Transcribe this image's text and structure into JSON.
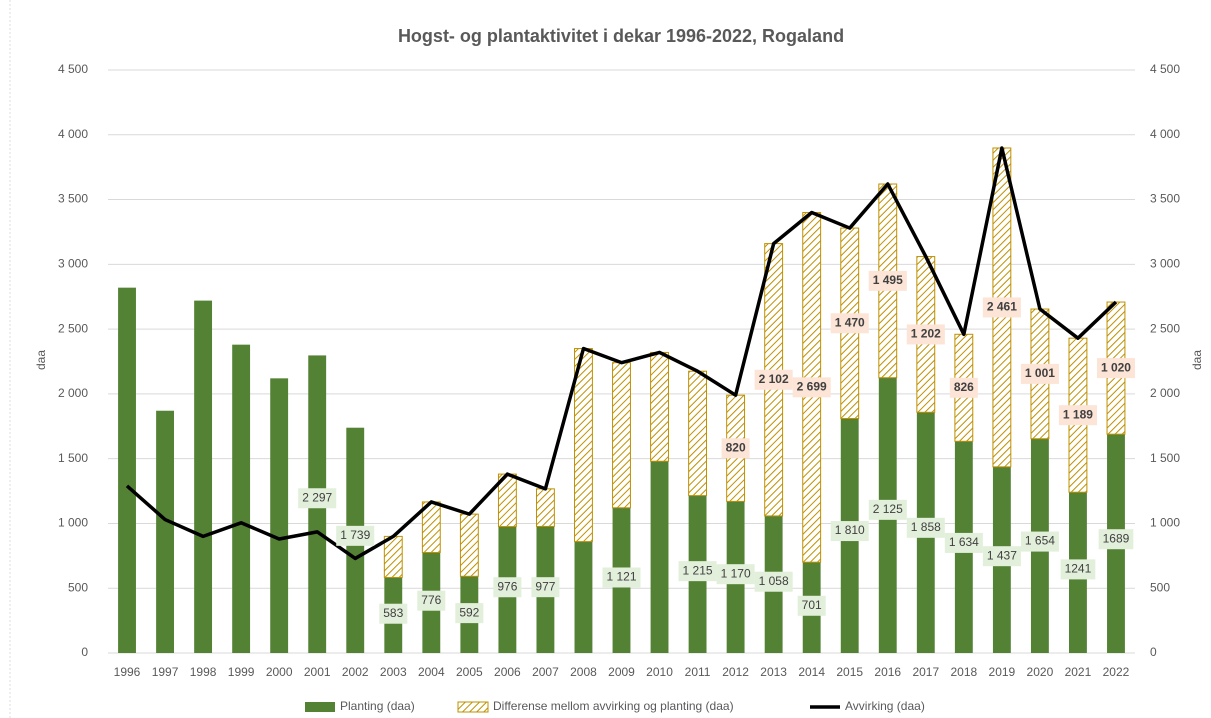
{
  "chart_data": {
    "type": "bar",
    "title": "Hogst- og plantaktivitet i dekar 1996-2022, Rogaland",
    "y_label": "daa",
    "y2_label": "daa",
    "categories": [
      "1996",
      "1997",
      "1998",
      "1999",
      "2000",
      "2001",
      "2002",
      "2003",
      "2004",
      "2005",
      "2006",
      "2007",
      "2008",
      "2009",
      "2010",
      "2011",
      "2012",
      "2013",
      "2014",
      "2015",
      "2016",
      "2017",
      "2018",
      "2019",
      "2020",
      "2021",
      "2022"
    ],
    "series": [
      {
        "name": "Planting (daa)",
        "kind": "bar",
        "color": "#548235",
        "values": [
          2820,
          1870,
          2720,
          2380,
          2120,
          2297,
          1739,
          583,
          776,
          592,
          976,
          977,
          860,
          1121,
          1480,
          1215,
          1170,
          1058,
          701,
          1810,
          2125,
          1858,
          1634,
          1437,
          1654,
          1241,
          1689
        ],
        "value_labels": [
          null,
          null,
          null,
          null,
          null,
          "2 297",
          "1 739",
          "583",
          "776",
          "592",
          "976",
          "977",
          null,
          "1 121",
          null,
          "1 215",
          "1 170",
          "1 058",
          "701",
          "1 810",
          "2 125",
          "1 858",
          "1 634",
          "1 437",
          "1 654",
          "1241",
          "1689"
        ]
      },
      {
        "name": "Differense mellom avvirking og planting (daa)",
        "kind": "hatched-bar",
        "color": "#bf9000",
        "values": [
          null,
          null,
          null,
          null,
          null,
          null,
          null,
          317,
          390,
          480,
          405,
          290,
          1490,
          1120,
          840,
          960,
          820,
          2102,
          2699,
          1470,
          1495,
          1202,
          826,
          2461,
          1001,
          1189,
          1020
        ],
        "value_labels": [
          null,
          null,
          null,
          null,
          null,
          null,
          null,
          null,
          null,
          null,
          null,
          null,
          null,
          null,
          null,
          null,
          "820",
          "2 102",
          "2 699",
          "1 470",
          "1 495",
          "1 202",
          "826",
          "2 461",
          "1 001",
          "1 189",
          "1 020"
        ]
      },
      {
        "name": "Avvirking (daa)",
        "kind": "line",
        "color": "#000000",
        "axis": "y2",
        "values": [
          1290,
          1030,
          900,
          1005,
          880,
          935,
          730,
          900,
          1166,
          1072,
          1381,
          1267,
          2350,
          2241,
          2320,
          2175,
          1990,
          3160,
          3400,
          3280,
          3620,
          3060,
          2460,
          3898,
          2655,
          2430,
          2709
        ]
      }
    ],
    "ylim": [
      0,
      4500
    ],
    "yticks": [
      0,
      500,
      {
        "value": 1000,
        "label": "1 000"
      },
      {
        "value": 1500,
        "label": "1 500"
      },
      {
        "value": 2000,
        "label": "2 000"
      },
      {
        "value": 2500,
        "label": "2 500"
      },
      {
        "value": 3000,
        "label": "3 000"
      },
      {
        "value": 3500,
        "label": "3 500"
      },
      {
        "value": 4000,
        "label": "4 000"
      },
      {
        "value": 4500,
        "label": "4 500"
      }
    ],
    "y2lim": [
      0,
      4500
    ],
    "y2ticks": [
      0,
      500,
      {
        "value": 1000,
        "label": "1 000"
      },
      {
        "value": 1500,
        "label": "1 500"
      },
      {
        "value": 2000,
        "label": "2 000"
      },
      {
        "value": 2500,
        "label": "2 500"
      },
      {
        "value": 3000,
        "label": "3 000"
      },
      {
        "value": 3500,
        "label": "3 500"
      },
      {
        "value": 4000,
        "label": "4 000"
      },
      {
        "value": 4500,
        "label": "4 500"
      }
    ],
    "grid": true,
    "legend": "bottom"
  }
}
